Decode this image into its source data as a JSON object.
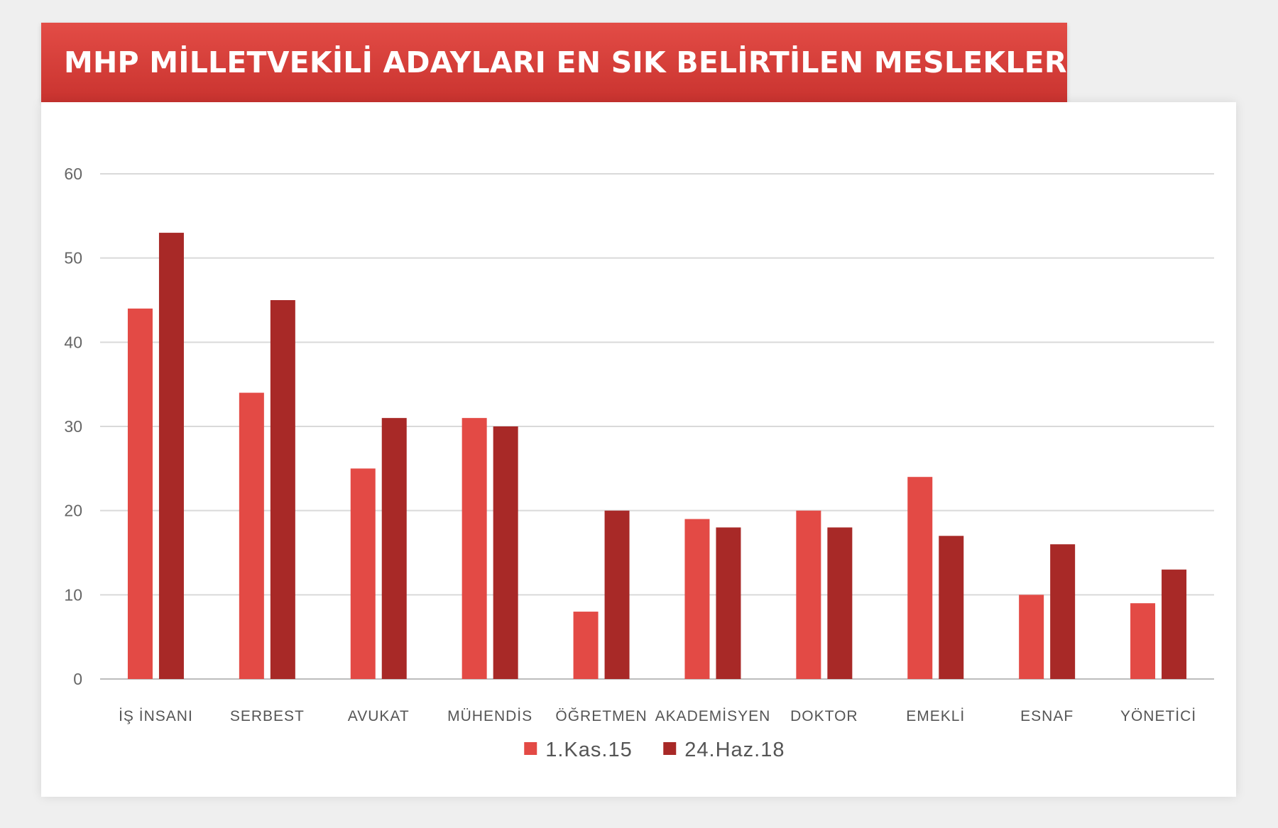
{
  "chart_data": {
    "type": "bar",
    "title": "MHP MİLLETVEKİLİ ADAYLARI EN SIK BELİRTİLEN MESLEKLER",
    "categories": [
      "İŞ İNSANI",
      "SERBEST",
      "AVUKAT",
      "MÜHENDİS",
      "ÖĞRETMEN",
      "AKADEMİSYEN",
      "DOKTOR",
      "EMEKLİ",
      "ESNAF",
      "YÖNETİCİ"
    ],
    "series": [
      {
        "name": "1.Kas.15",
        "color": "#e34a45",
        "values": [
          44,
          34,
          25,
          31,
          8,
          19,
          20,
          24,
          10,
          9
        ]
      },
      {
        "name": "24.Haz.18",
        "color": "#a82927",
        "values": [
          53,
          45,
          31,
          30,
          20,
          18,
          18,
          17,
          16,
          13
        ]
      }
    ],
    "ylim": [
      0,
      60
    ],
    "yticks": [
      0,
      10,
      20,
      30,
      40,
      50,
      60
    ],
    "xlabel": "",
    "ylabel": "",
    "grid": true,
    "legend_position": "bottom-center"
  }
}
